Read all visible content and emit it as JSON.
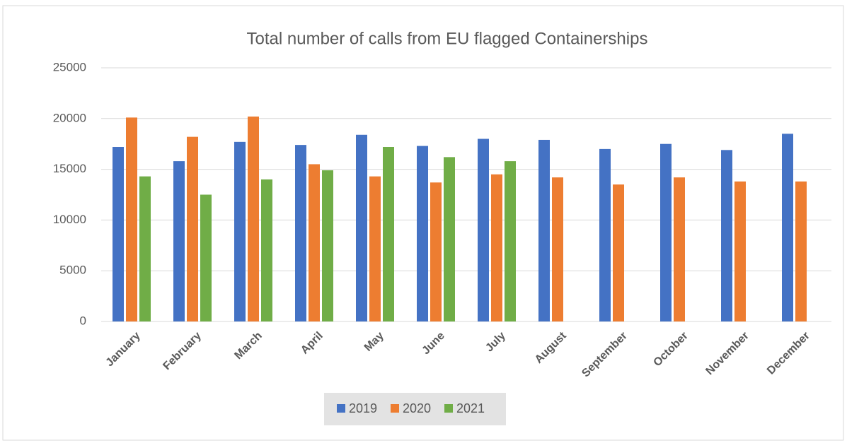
{
  "chart_data": {
    "type": "bar",
    "title": "Total number of calls from EU flagged Containerships",
    "categories": [
      "January",
      "February",
      "March",
      "April",
      "May",
      "June",
      "July",
      "August",
      "September",
      "October",
      "November",
      "December"
    ],
    "series": [
      {
        "name": "2019",
        "color": "#4472c4",
        "values": [
          17200,
          15800,
          17700,
          17400,
          18400,
          17300,
          18000,
          17900,
          17000,
          17500,
          16900,
          18500
        ]
      },
      {
        "name": "2020",
        "color": "#ed7d31",
        "values": [
          20100,
          18200,
          20200,
          15500,
          14300,
          13700,
          14500,
          14200,
          13500,
          14200,
          13800,
          13800
        ]
      },
      {
        "name": "2021",
        "color": "#70ad47",
        "values": [
          14300,
          12500,
          14000,
          14900,
          17200,
          16200,
          15800,
          null,
          null,
          null,
          null,
          null
        ]
      }
    ],
    "ylim": [
      0,
      25000
    ],
    "yticks": [
      0,
      5000,
      10000,
      15000,
      20000,
      25000
    ],
    "grid": true,
    "legend": "bottom"
  }
}
